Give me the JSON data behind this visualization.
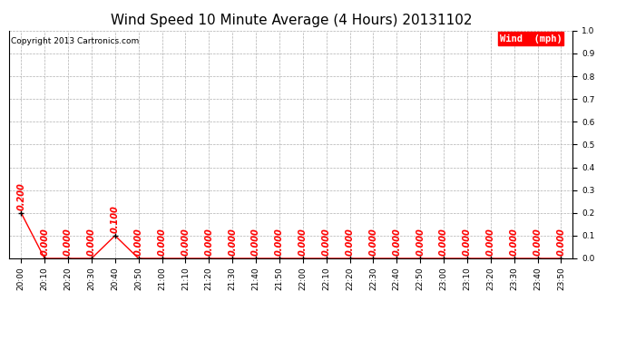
{
  "title": "Wind Speed 10 Minute Average (4 Hours) 20131102",
  "copyright": "Copyright 2013 Cartronics.com",
  "legend_label": "Wind  (mph)",
  "x_labels": [
    "20:00",
    "20:10",
    "20:20",
    "20:30",
    "20:40",
    "20:50",
    "21:00",
    "21:10",
    "21:20",
    "21:30",
    "21:40",
    "21:50",
    "22:00",
    "22:10",
    "22:20",
    "22:30",
    "22:40",
    "22:50",
    "23:00",
    "23:10",
    "23:20",
    "23:30",
    "23:40",
    "23:50"
  ],
  "y_values": [
    0.2,
    0.0,
    0.0,
    0.0,
    0.1,
    0.0,
    0.0,
    0.0,
    0.0,
    0.0,
    0.0,
    0.0,
    0.0,
    0.0,
    0.0,
    0.0,
    0.0,
    0.0,
    0.0,
    0.0,
    0.0,
    0.0,
    0.0,
    0.0
  ],
  "line_color": "#ff0000",
  "marker_color": "#000000",
  "bg_color": "#ffffff",
  "grid_color": "#b0b0b0",
  "title_fontsize": 11,
  "tick_fontsize": 6.5,
  "label_fontsize": 7,
  "copyright_fontsize": 6.5,
  "legend_fontsize": 7.5,
  "ylim": [
    0.0,
    1.0
  ],
  "yticks": [
    0.0,
    0.1,
    0.2,
    0.3,
    0.4,
    0.5,
    0.6,
    0.7,
    0.8,
    0.9,
    1.0
  ]
}
